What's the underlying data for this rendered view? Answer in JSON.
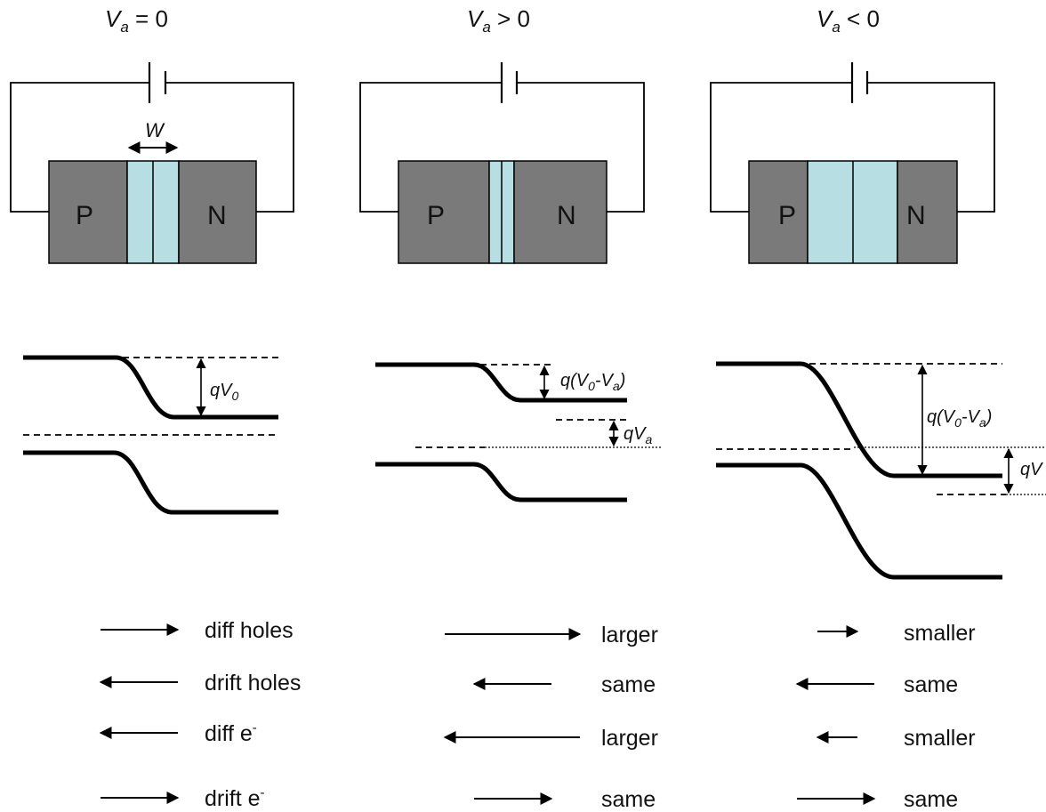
{
  "colors": {
    "semiconductor": "#7a7a7a",
    "depletion": "#b7dfe3",
    "line": "#000000"
  },
  "panels": [
    {
      "title_var": "V",
      "title_sub": "a",
      "title_rel": " = 0",
      "p_label": "P",
      "n_label": "N",
      "width_label": "W",
      "step_label": {
        "pre": "qV",
        "sub": "0",
        "post": ""
      },
      "flux": [
        {
          "label": "diff holes"
        },
        {
          "label": "drift holes"
        },
        {
          "label": "diff e",
          "sup": "-"
        },
        {
          "label": "drift e",
          "sup": "-"
        }
      ]
    },
    {
      "title_var": "V",
      "title_sub": "a",
      "title_rel": " > 0",
      "p_label": "P",
      "n_label": "N",
      "step_label": {
        "pre": "q(V",
        "sub": "0",
        "mid": "-V",
        "sub2": "a",
        "post": ")"
      },
      "bias_label": {
        "pre": "qV",
        "sub": "a"
      },
      "flux": [
        {
          "label": "larger"
        },
        {
          "label": "same"
        },
        {
          "label": "larger"
        },
        {
          "label": "same"
        }
      ]
    },
    {
      "title_var": "V",
      "title_sub": "a",
      "title_rel": " < 0",
      "p_label": "P",
      "n_label": "N",
      "step_label": {
        "pre": "q(V",
        "sub": "0",
        "mid": "-V",
        "sub2": "a",
        "post": ")"
      },
      "bias_label": {
        "pre": "qV",
        "sub": ""
      },
      "flux": [
        {
          "label": "smaller"
        },
        {
          "label": "same"
        },
        {
          "label": "smaller"
        },
        {
          "label": "same"
        }
      ]
    }
  ]
}
